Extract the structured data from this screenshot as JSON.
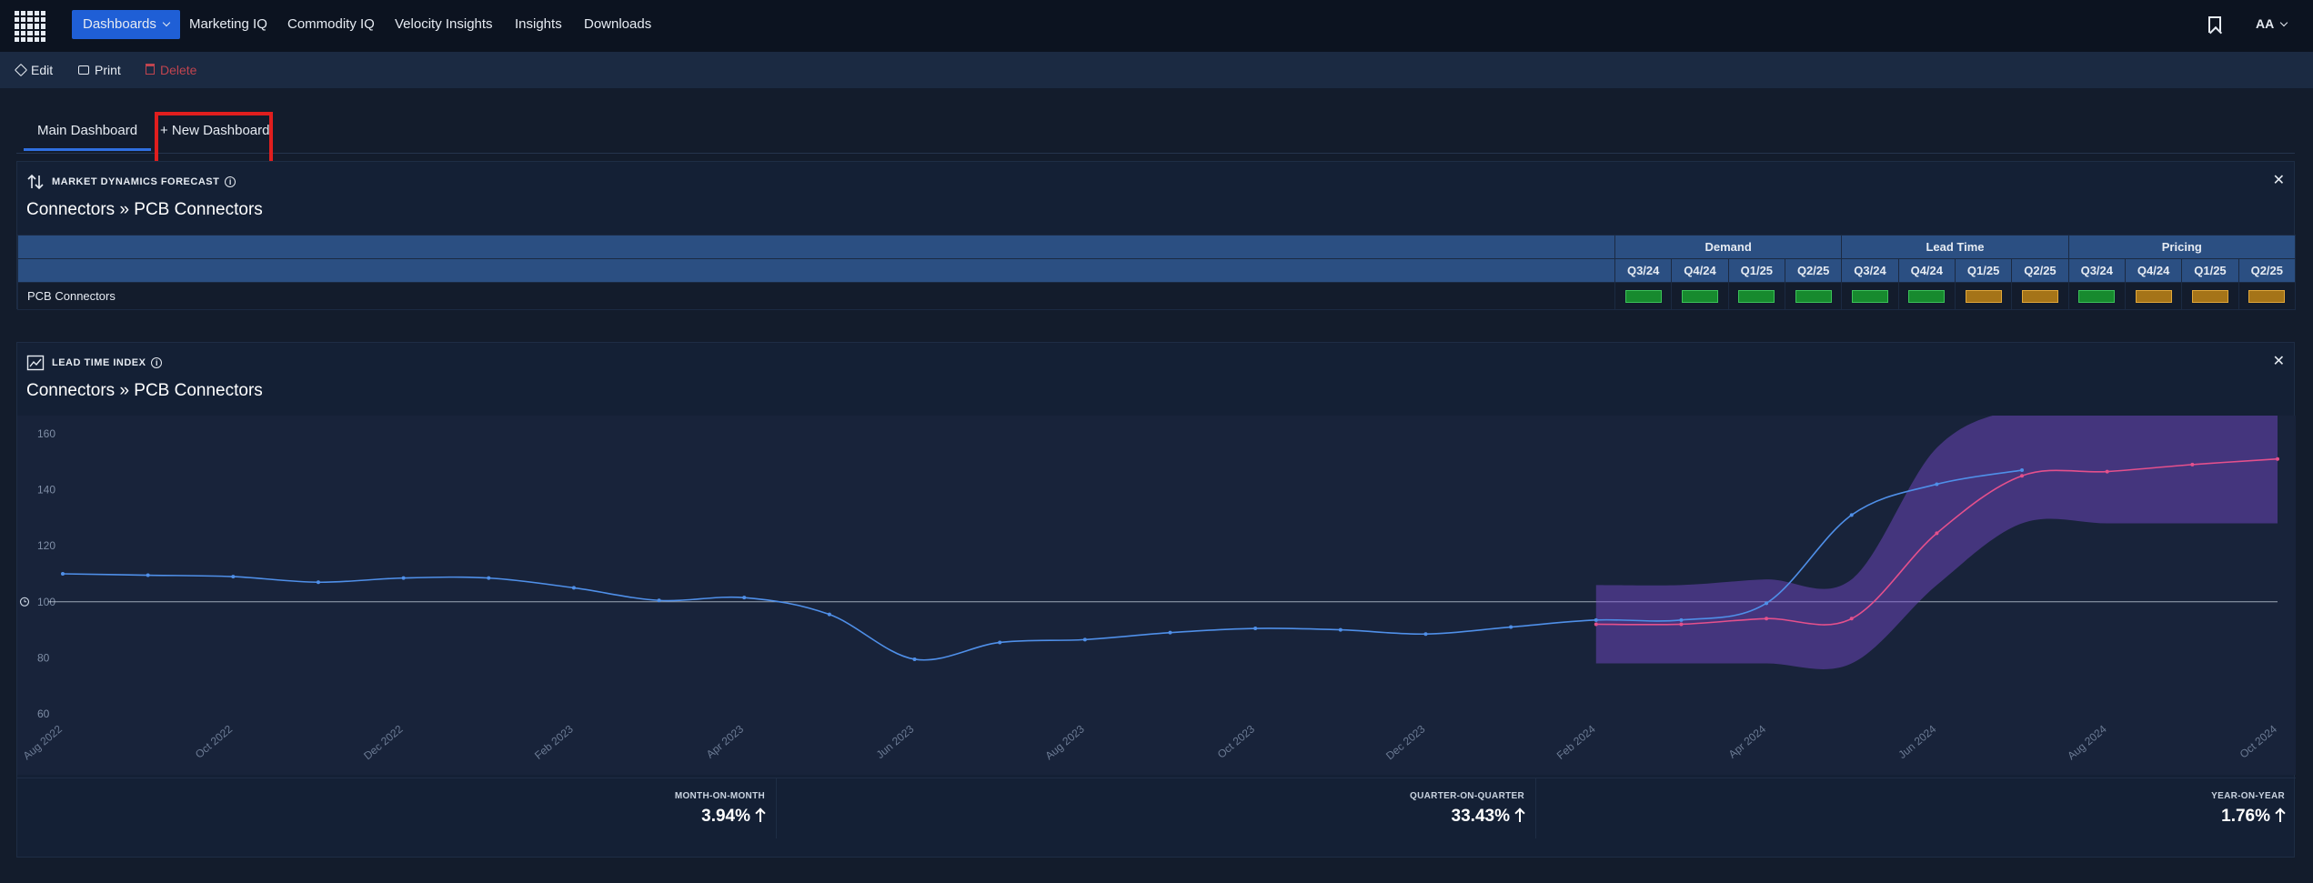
{
  "nav": {
    "items": [
      "Dashboards",
      "Marketing IQ",
      "Commodity IQ",
      "Velocity Insights",
      "Insights",
      "Downloads"
    ],
    "user": "AA"
  },
  "toolbar": {
    "edit": "Edit",
    "print": "Print",
    "delete": "Delete"
  },
  "tabs": {
    "main": "Main Dashboard",
    "new": "+ New Dashboard"
  },
  "mdf": {
    "title": "MARKET DYNAMICS FORECAST",
    "subtitle": "Connectors » PCB Connectors",
    "groups": [
      "Demand",
      "Lead Time",
      "Pricing"
    ],
    "quarters": [
      "Q3/24",
      "Q4/24",
      "Q1/25",
      "Q2/25",
      "Q3/24",
      "Q4/24",
      "Q1/25",
      "Q2/25",
      "Q3/24",
      "Q4/24",
      "Q1/25",
      "Q2/25"
    ],
    "row_label": "PCB Connectors",
    "row_status": [
      "green",
      "green",
      "green",
      "green",
      "green",
      "green",
      "amber",
      "amber",
      "green",
      "amber",
      "amber",
      "amber"
    ],
    "colors": {
      "green": "#178a2e",
      "amber": "#a57418"
    }
  },
  "lti": {
    "title": "LEAD TIME INDEX",
    "subtitle": "Connectors » PCB Connectors",
    "stats": [
      {
        "label": "MONTH-ON-MONTH",
        "value": "3.94%"
      },
      {
        "label": "QUARTER-ON-QUARTER",
        "value": "33.43%"
      },
      {
        "label": "YEAR-ON-YEAR",
        "value": "1.76%"
      }
    ]
  },
  "chart_data": {
    "type": "line",
    "yticks": [
      60,
      80,
      100,
      120,
      140,
      160
    ],
    "ylim": [
      60,
      160
    ],
    "reference_value": 100,
    "xticks": [
      "Aug 2022",
      "Oct 2022",
      "Dec 2022",
      "Feb 2023",
      "Apr 2023",
      "Jun 2023",
      "Aug 2023",
      "Oct 2023",
      "Dec 2023",
      "Feb 2024",
      "Apr 2024",
      "Jun 2024",
      "Aug 2024",
      "Oct 2024"
    ],
    "x": [
      "2022-08",
      "2022-09",
      "2022-10",
      "2022-11",
      "2022-12",
      "2023-01",
      "2023-02",
      "2023-03",
      "2023-04",
      "2023-05",
      "2023-06",
      "2023-07",
      "2023-08",
      "2023-09",
      "2023-10",
      "2023-11",
      "2023-12",
      "2024-01",
      "2024-02",
      "2024-03",
      "2024-04",
      "2024-05",
      "2024-06",
      "2024-07",
      "2024-08",
      "2024-09",
      "2024-10"
    ],
    "series": [
      {
        "values": [
          110,
          109.5,
          109,
          107,
          108.5,
          108.5,
          105,
          100.5,
          101.5,
          95.5,
          79.5,
          85.5,
          86.5,
          89,
          90.5,
          90,
          88.5,
          91,
          93.5,
          93.5,
          99.5,
          131,
          142,
          147,
          null,
          null,
          null
        ],
        "color": "#4f8fe8"
      },
      {
        "values": [
          null,
          null,
          null,
          null,
          null,
          null,
          null,
          null,
          null,
          null,
          null,
          null,
          null,
          null,
          null,
          null,
          null,
          null,
          92,
          92,
          94,
          94,
          124.5,
          145,
          146.5,
          149,
          151
        ],
        "color": "#e4508c"
      }
    ],
    "band": {
      "x_start": "2024-02",
      "lower": [
        78,
        78,
        78,
        78,
        106,
        128,
        128,
        128,
        128
      ],
      "upper": [
        106,
        106,
        108,
        108,
        155,
        169,
        169,
        172,
        173
      ],
      "color": "#7a4bd1"
    }
  }
}
